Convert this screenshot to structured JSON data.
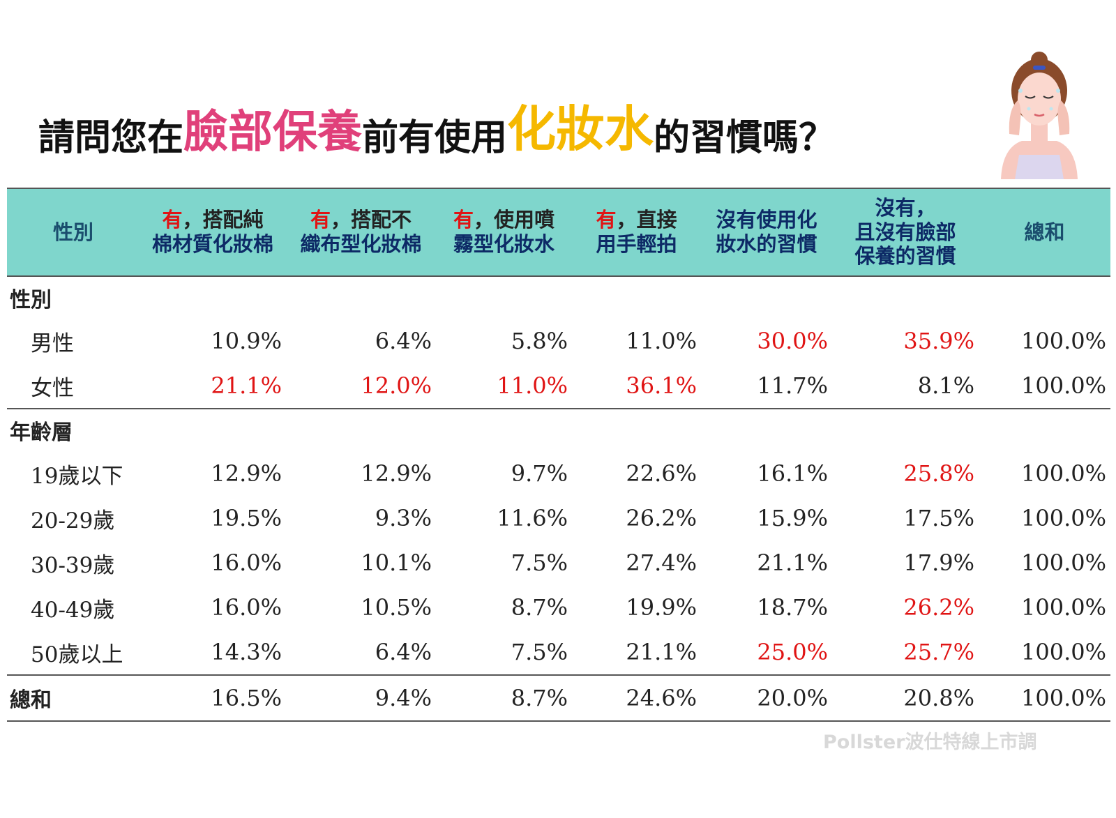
{
  "title": {
    "part1": "請問您在",
    "part2": "臉部保養",
    "part3": "前有使用",
    "part4": "化妝水",
    "part5": "的習慣嗎？"
  },
  "colors": {
    "header_bg": "#7fd6cc",
    "highlight": "#e01414",
    "title_pink": "#e0407a",
    "title_gold": "#f5b800"
  },
  "chart_data": {
    "type": "table",
    "columns": [
      "性別",
      "有，搭配純棉材質化妝棉",
      "有，搭配不織布型化妝棉",
      "有，使用噴霧型化妝水",
      "有，直接用手輕拍",
      "沒有使用化妝水的習慣",
      "沒有，且沒有臉部保養的習慣",
      "總和"
    ],
    "header": {
      "c0": "性別",
      "c1_mark": "有",
      "c1_a": "，搭配純",
      "c1_b": "棉材質化妝棉",
      "c2_mark": "有",
      "c2_a": "，搭配不",
      "c2_b1": "織",
      "c2_b2": "布型化妝棉",
      "c3_mark": "有",
      "c3_a": "，使用噴",
      "c3_b": "霧型化妝水",
      "c4_mark": "有",
      "c4_a": "，直接",
      "c4_b": "用手輕拍",
      "c5_a": "沒有使用化",
      "c5_b": "妝水的習慣",
      "c6_a": "沒有，",
      "c6_b": "且沒有臉部",
      "c6_c": "保養的習慣",
      "c7": "總和"
    },
    "sections": [
      {
        "name": "性別",
        "rows": [
          {
            "label": "男性",
            "values": [
              "10.9%",
              "6.4%",
              "5.8%",
              "11.0%",
              "30.0%",
              "35.9%",
              "100.0%"
            ],
            "highlight": [
              4,
              5
            ]
          },
          {
            "label": "女性",
            "values": [
              "21.1%",
              "12.0%",
              "11.0%",
              "36.1%",
              "11.7%",
              "8.1%",
              "100.0%"
            ],
            "highlight": [
              0,
              1,
              2,
              3
            ]
          }
        ]
      },
      {
        "name": "年齡層",
        "rows": [
          {
            "label": "19歲以下",
            "values": [
              "12.9%",
              "12.9%",
              "9.7%",
              "22.6%",
              "16.1%",
              "25.8%",
              "100.0%"
            ],
            "highlight": [
              5
            ]
          },
          {
            "label": "20-29歲",
            "values": [
              "19.5%",
              "9.3%",
              "11.6%",
              "26.2%",
              "15.9%",
              "17.5%",
              "100.0%"
            ],
            "highlight": []
          },
          {
            "label": "30-39歲",
            "values": [
              "16.0%",
              "10.1%",
              "7.5%",
              "27.4%",
              "21.1%",
              "17.9%",
              "100.0%"
            ],
            "highlight": []
          },
          {
            "label": "40-49歲",
            "values": [
              "16.0%",
              "10.5%",
              "8.7%",
              "19.9%",
              "18.7%",
              "26.2%",
              "100.0%"
            ],
            "highlight": [
              5
            ]
          },
          {
            "label": "50歲以上",
            "values": [
              "14.3%",
              "6.4%",
              "7.5%",
              "21.1%",
              "25.0%",
              "25.7%",
              "100.0%"
            ],
            "highlight": [
              4,
              5
            ]
          }
        ]
      }
    ],
    "total": {
      "label": "總和",
      "values": [
        "16.5%",
        "9.4%",
        "8.7%",
        "24.6%",
        "20.0%",
        "20.8%",
        "100.0%"
      ]
    }
  },
  "watermark": "Pollster波仕特線上市調"
}
